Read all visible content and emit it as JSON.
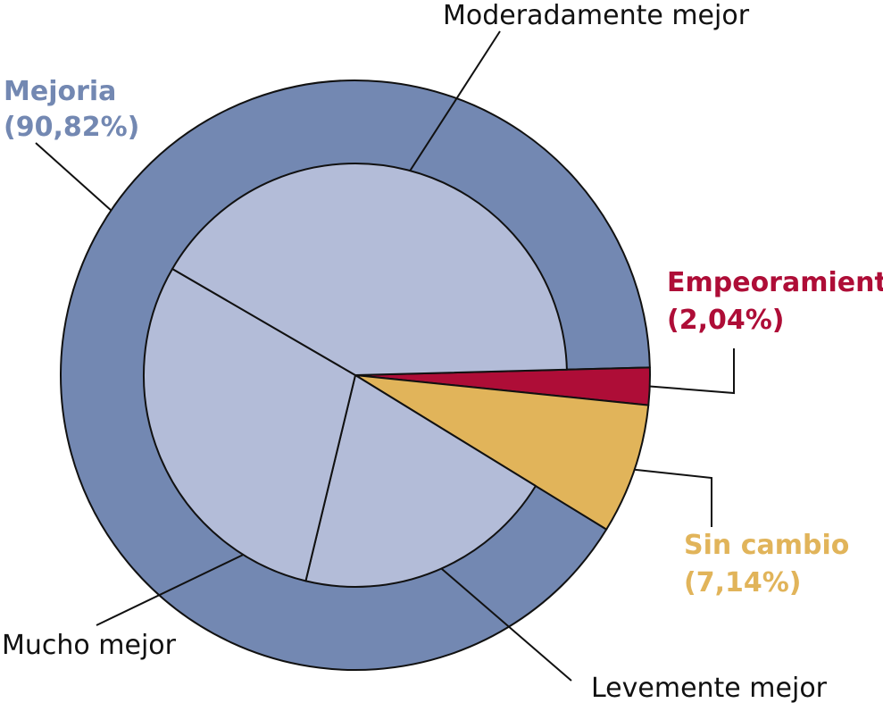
{
  "chart_data": {
    "type": "pie",
    "outer_ring": [
      {
        "name": "Mejoria",
        "pct_label": "(90,82%)",
        "value": 90.82,
        "color": "#7388b2"
      },
      {
        "name": "Empeoramiento",
        "pct_label": "(2,04%)",
        "value": 2.04,
        "color": "#ae0d37"
      },
      {
        "name": "Sin cambio",
        "pct_label": "(7,14%)",
        "value": 7.14,
        "color": "#e1b45a"
      }
    ],
    "inner_breakdown_of": "Mejoria",
    "inner_slices": [
      {
        "name": "Moderadamente mejor",
        "value": 41.2
      },
      {
        "name": "Mucho mejor",
        "value": 29.6
      },
      {
        "name": "Levemente mejor",
        "value": 20.0
      }
    ],
    "inner_color": "#b3bcd8",
    "start_angle_deg": 0,
    "direction": "clockwise"
  }
}
